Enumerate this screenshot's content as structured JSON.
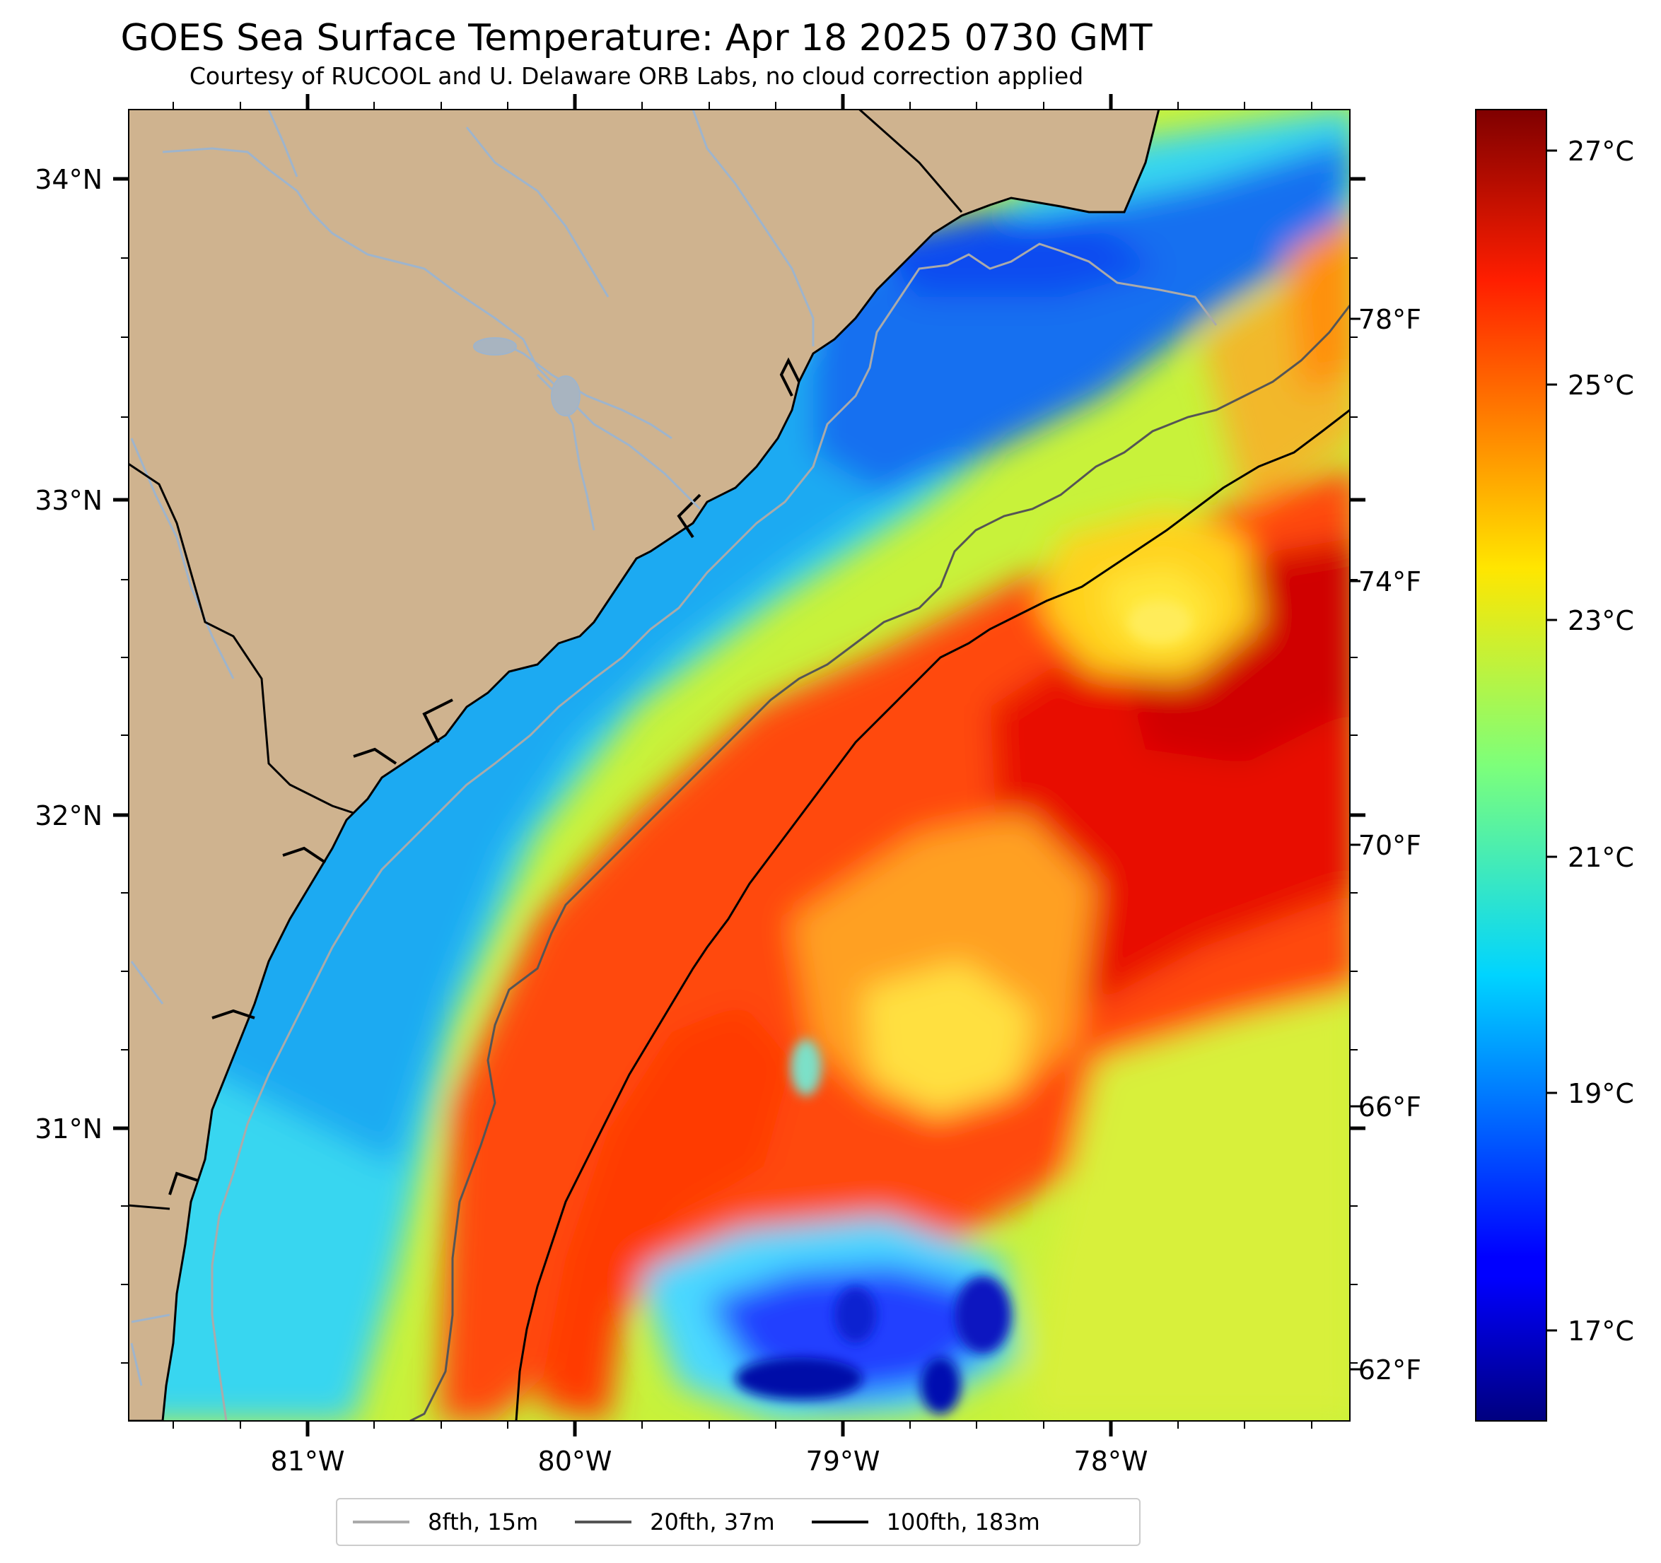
{
  "title": "GOES Sea Surface Temperature: Apr 18 2025 0730 GMT",
  "subtitle": "Courtesy of RUCOOL and U. Delaware ORB Labs, no cloud correction applied",
  "map": {
    "lat_ticks": [
      "34°N",
      "33°N",
      "32°N",
      "31°N"
    ],
    "lon_ticks": [
      "81°W",
      "80°W",
      "79°W",
      "78°W"
    ],
    "land_color": "#cfb38f",
    "coast_color": "#000000",
    "river_color": "#9eb4cc"
  },
  "colorbar": {
    "colormap": "jet",
    "celsius_labels": [
      "27°C",
      "25°C",
      "23°C",
      "21°C",
      "19°C",
      "17°C"
    ],
    "fahrenheit_labels": [
      "78°F",
      "74°F",
      "70°F",
      "66°F",
      "62°F"
    ]
  },
  "legend": {
    "items": [
      {
        "label": "8fth, 15m",
        "color": "#aaaaaa"
      },
      {
        "label": "20fth, 37m",
        "color": "#555555"
      },
      {
        "label": "100fth, 183m",
        "color": "#000000"
      }
    ]
  }
}
